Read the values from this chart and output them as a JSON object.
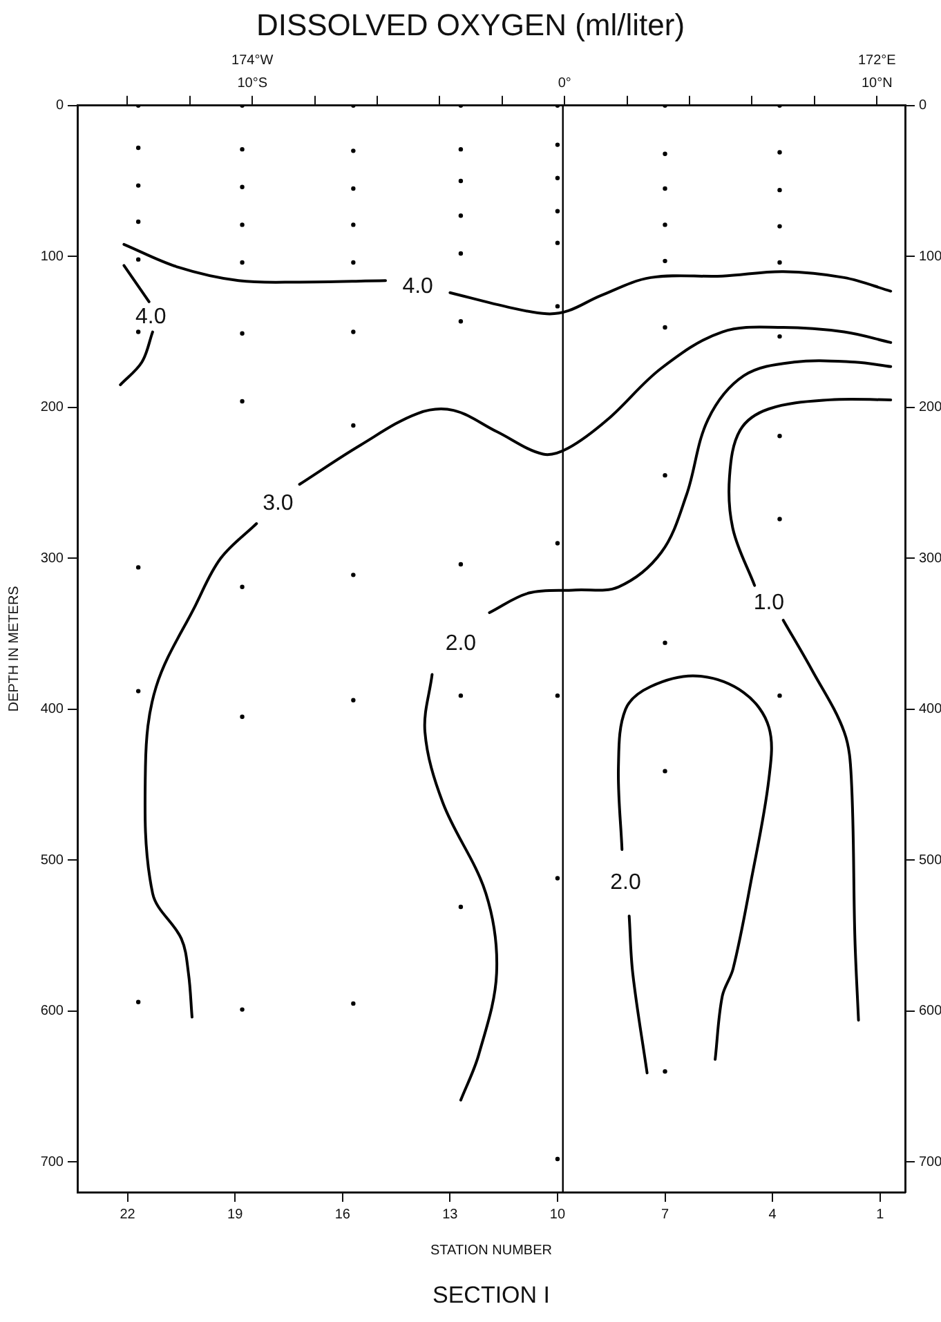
{
  "chart_data": {
    "type": "line",
    "title": "DISSOLVED OXYGEN (ml/liter)",
    "xlabel": "STATION NUMBER",
    "ylabel": "DEPTH IN METERS",
    "annotations": [
      "SECTION I",
      "174°W",
      "172°E"
    ],
    "xlim": [
      23.4,
      0.3
    ],
    "xticks": [
      22,
      19,
      16,
      13,
      10,
      7,
      4,
      1
    ],
    "x2lim": [
      -15.6,
      10.9
    ],
    "x2ticks": [
      {
        "value": -14,
        "label": null
      },
      {
        "value": -12,
        "label": null
      },
      {
        "value": -10,
        "label": "10°S"
      },
      {
        "value": -8,
        "label": null
      },
      {
        "value": -6,
        "label": null
      },
      {
        "value": -4,
        "label": null
      },
      {
        "value": -2,
        "label": null
      },
      {
        "value": 0,
        "label": "0°"
      },
      {
        "value": 2,
        "label": null
      },
      {
        "value": 4,
        "label": null
      },
      {
        "value": 6,
        "label": null
      },
      {
        "value": 8,
        "label": null
      },
      {
        "value": 10,
        "label": "10°N"
      }
    ],
    "ylim": [
      720,
      0
    ],
    "yticks": [
      0,
      100,
      200,
      300,
      400,
      500,
      600,
      700
    ],
    "y2lim": [
      720,
      0
    ],
    "y2ticks": [
      0,
      100,
      200,
      300,
      400,
      500,
      600,
      700
    ],
    "grid": false,
    "legend": false,
    "marker": "none",
    "ref_lines": [
      {
        "axis": "x",
        "value": 9.85,
        "color": "#000000"
      }
    ],
    "series": [
      {
        "name": "4.0",
        "color": "#000000",
        "x": [
          22.1,
          20.6,
          18.9,
          17.2,
          14.8,
          null,
          13.0,
          11.3,
          10.3,
          9.7,
          8.8,
          7.4,
          5.4,
          3.7,
          2.0,
          0.7
        ],
        "values": [
          92,
          107,
          116,
          117,
          116,
          null,
          124,
          134,
          138,
          136,
          126,
          114,
          113,
          110,
          114,
          123
        ]
      },
      {
        "name": "4.0",
        "color": "#000000",
        "x": [
          22.1,
          21.4,
          null,
          21.3,
          21.6,
          22.2
        ],
        "values": [
          106,
          130,
          null,
          150,
          170,
          185
        ]
      },
      {
        "name": "3.0",
        "color": "#000000",
        "x": [
          20.2,
          20.3,
          20.5,
          21.3,
          21.5,
          21.2,
          20.1,
          19.4,
          18.4,
          null,
          17.2,
          15.5,
          13.9,
          12.9,
          11.7,
          10.4,
          9.7,
          8.6,
          7.1,
          5.4,
          3.7,
          2.0,
          0.7
        ],
        "values": [
          604,
          575,
          552,
          522,
          438,
          385,
          331,
          300,
          277,
          null,
          251,
          225,
          204,
          202,
          216,
          231,
          227,
          208,
          174,
          150,
          147,
          150,
          157
        ]
      },
      {
        "name": "2.0",
        "color": "#000000",
        "x": [
          12.7,
          12.2,
          11.7,
          12.0,
          13.2,
          13.7,
          13.5,
          null,
          11.9,
          10.8,
          9.5,
          8.3,
          7.1,
          6.4,
          5.8,
          4.8,
          3.4,
          1.7,
          0.7
        ],
        "values": [
          659,
          629,
          575,
          522,
          462,
          415,
          377,
          null,
          336,
          323,
          321,
          319,
          296,
          258,
          208,
          179,
          170,
          170,
          173
        ]
      },
      {
        "name": "1.0",
        "color": "#000000",
        "x": [
          1.6,
          1.7,
          1.8,
          2.0,
          2.9,
          3.7,
          null,
          4.5,
          5.1,
          5.2,
          4.9,
          4.1,
          2.4,
          0.7
        ],
        "values": [
          606,
          552,
          446,
          415,
          374,
          341,
          null,
          318,
          281,
          246,
          215,
          201,
          195,
          195
        ]
      },
      {
        "name": "2.0",
        "color": "#000000",
        "x": [
          7.5,
          7.9,
          8.0,
          null,
          8.2,
          8.3,
          8.1,
          7.4,
          6.1,
          4.8,
          4.1,
          4.1,
          4.6,
          5.1,
          5.4,
          5.6
        ],
        "values": [
          641,
          575,
          537,
          null,
          493,
          438,
          400,
          385,
          378,
          389,
          412,
          446,
          514,
          572,
          590,
          632
        ]
      },
      {
        "type": "scatter",
        "marker": "circle",
        "color": "#000000",
        "x": [
          21.7,
          21.7,
          21.7,
          21.7,
          21.7,
          21.7,
          21.7,
          21.7,
          21.7,
          18.8,
          18.8,
          18.8,
          18.8,
          18.8,
          18.8,
          18.8,
          18.8,
          18.8,
          18.8,
          15.7,
          15.7,
          15.7,
          15.7,
          15.7,
          15.7,
          15.7,
          15.7,
          15.7,
          15.7,
          12.7,
          12.7,
          12.7,
          12.7,
          12.7,
          12.7,
          12.7,
          12.7,
          12.7,
          10.0,
          10.0,
          10.0,
          10.0,
          10.0,
          10.0,
          10.0,
          10.0,
          10.0,
          10.0,
          7.0,
          7.0,
          7.0,
          7.0,
          7.0,
          7.0,
          7.0,
          7.0,
          7.0,
          7.0,
          3.8,
          3.8,
          3.8,
          3.8,
          3.8,
          3.8,
          3.8,
          3.8,
          3.8
        ],
        "values": [
          0,
          28,
          53,
          77,
          102,
          150,
          306,
          388,
          594,
          0,
          29,
          54,
          79,
          104,
          151,
          196,
          319,
          405,
          599,
          0,
          30,
          55,
          79,
          104,
          150,
          212,
          311,
          394,
          595,
          0,
          29,
          50,
          73,
          98,
          143,
          304,
          391,
          531,
          0,
          26,
          48,
          70,
          91,
          133,
          290,
          391,
          512,
          698,
          0,
          32,
          55,
          79,
          103,
          147,
          245,
          356,
          441,
          640,
          0,
          31,
          56,
          80,
          104,
          153,
          219,
          274,
          391
        ]
      }
    ]
  }
}
